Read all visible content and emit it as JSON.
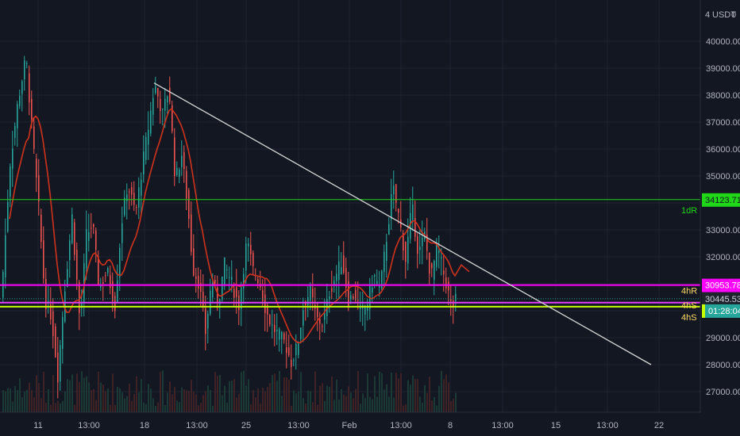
{
  "currency_label": "USDT",
  "currency_count": "4",
  "currency_flag": "0",
  "chart_data": {
    "type": "candlestick",
    "ylim": [
      26400,
      41200
    ],
    "y_ticks": [
      27000,
      28000,
      29000,
      30000,
      31000,
      32000,
      33000,
      34000,
      35000,
      36000,
      37000,
      38000,
      39000,
      40000
    ],
    "y_tick_labels": [
      "27000.00",
      "28000.00",
      "29000.00",
      "30000.00",
      "31000.00",
      "32000.00",
      "33000.00",
      "34000.00",
      "35000.00",
      "36000.00",
      "37000.00",
      "38000.00",
      "39000.00",
      "40000.00"
    ],
    "x_tick_labels": [
      "11",
      "13:00",
      "18",
      "13:00",
      "25",
      "13:00",
      "Feb",
      "13:00",
      "8",
      "13:00",
      "15",
      "13:00",
      "22"
    ],
    "levels": [
      {
        "label": "1dR",
        "price": 34123.71,
        "price_label": "34123.71",
        "color": "#1fd617"
      },
      {
        "label": "4hR",
        "price": 30953.78,
        "price_label": "30953.78",
        "color": "#ff00ff"
      },
      {
        "label": "4hS",
        "price": 30300,
        "price_label": "",
        "color": "#e040fb"
      },
      {
        "label": "4hS",
        "price": 30150,
        "price_label": "",
        "color": "#c6ff00"
      }
    ],
    "last_price": {
      "value": "30445.53",
      "countdown": "01:28:04",
      "color": "#26a69a"
    },
    "trendline": {
      "start_price": 38450,
      "end_price": 28000
    }
  }
}
